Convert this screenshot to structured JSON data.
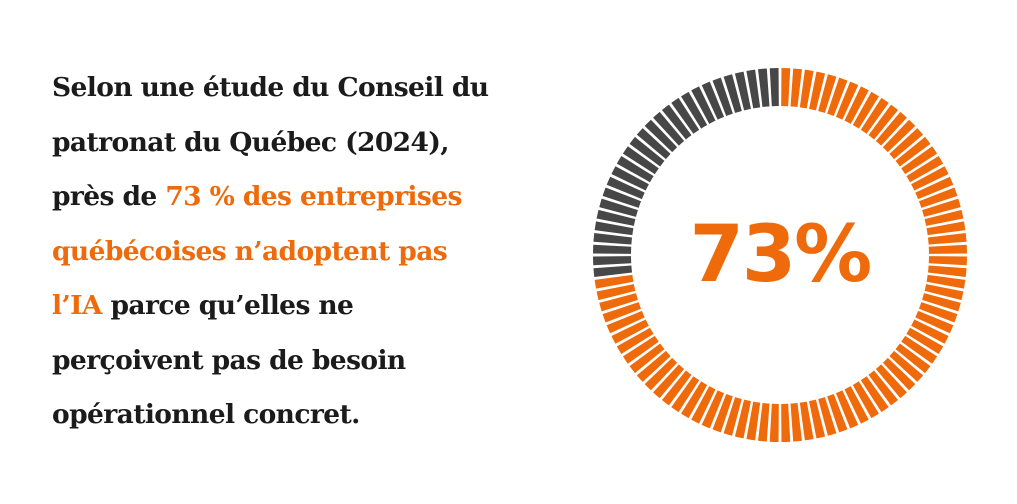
{
  "text": {
    "lines": [
      [
        {
          "t": "Selon une étude du Conseil du",
          "hl": false
        }
      ],
      [
        {
          "t": "patronat du Québec (2024),",
          "hl": false
        }
      ],
      [
        {
          "t": "près de ",
          "hl": false
        },
        {
          "t": "73 % des entreprises",
          "hl": true
        }
      ],
      [
        {
          "t": "québécoises n’adoptent pas",
          "hl": true
        }
      ],
      [
        {
          "t": "l’IA",
          "hl": true
        },
        {
          "t": " parce qu’elles ne",
          "hl": false
        }
      ],
      [
        {
          "t": "perçoivent pas de besoin",
          "hl": false
        }
      ],
      [
        {
          "t": "opérationnel concret.",
          "hl": false
        }
      ]
    ]
  },
  "colors": {
    "accent": "#ee6a0a",
    "remainder": "#474747",
    "text": "#1b1b1b"
  },
  "chart_data": {
    "type": "pie",
    "style": "segmented donut",
    "values": [
      73,
      27
    ],
    "colors": [
      "#ee6a0a",
      "#474747"
    ],
    "center_label": "73%"
  }
}
